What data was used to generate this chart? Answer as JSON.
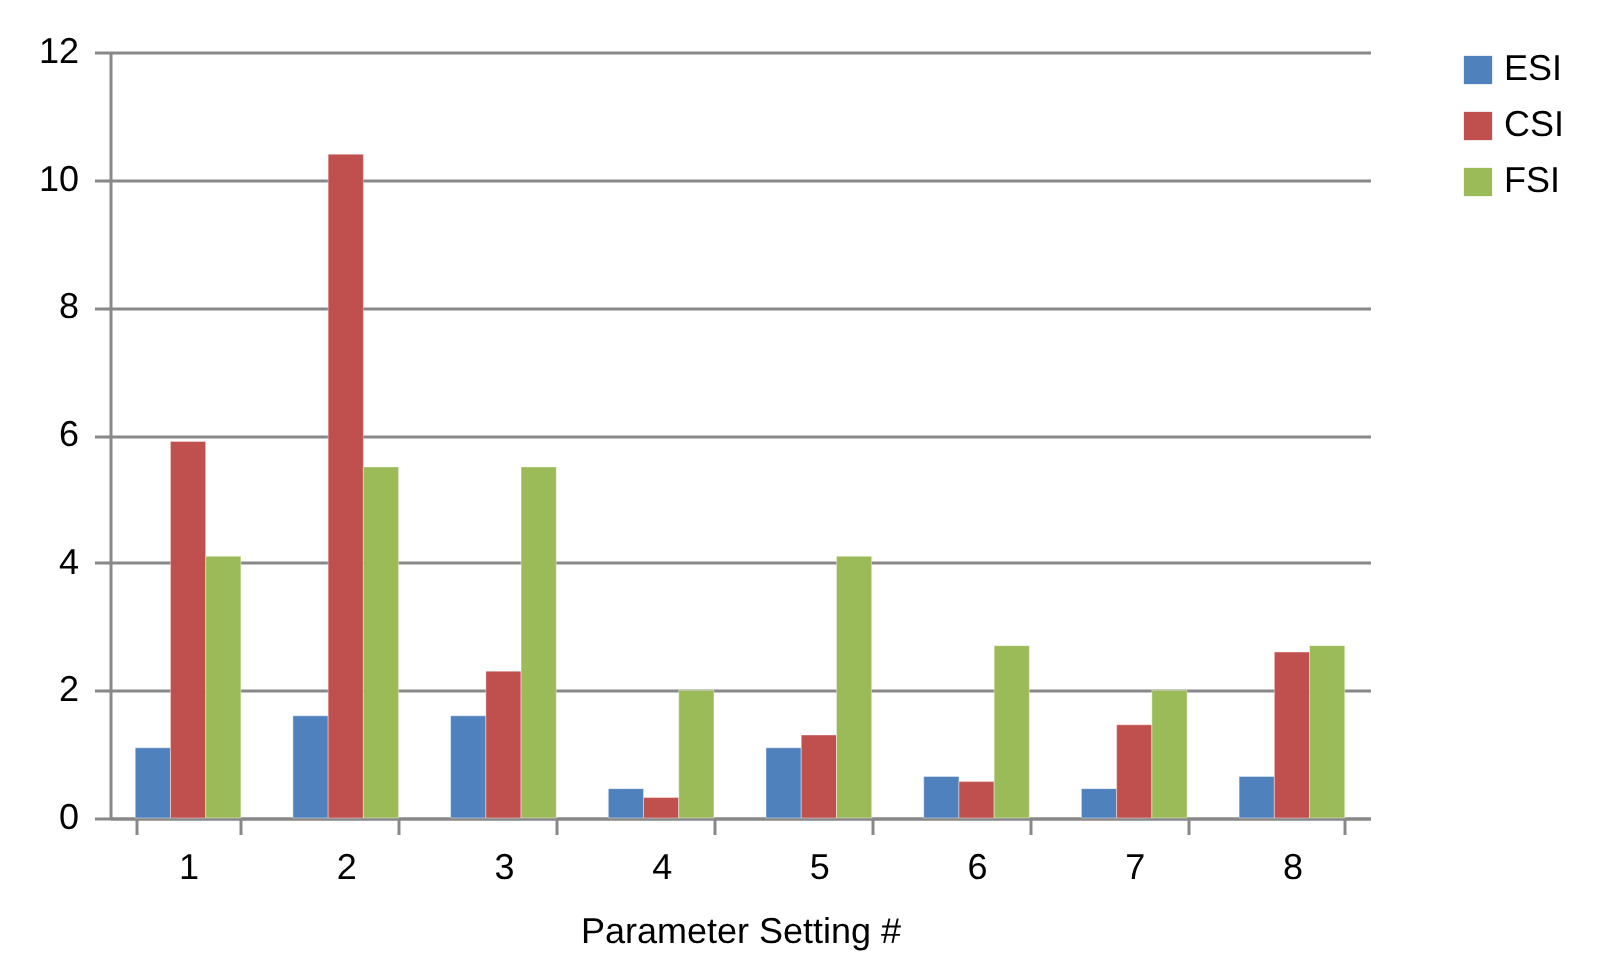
{
  "chart_data": {
    "type": "bar",
    "xlabel": "Parameter Setting #",
    "categories": [
      "1",
      "2",
      "3",
      "4",
      "5",
      "6",
      "7",
      "8"
    ],
    "series": [
      {
        "name": "ESI",
        "color": "#4f81bd",
        "values": [
          1.1,
          1.6,
          1.6,
          0.46,
          1.1,
          0.65,
          0.46,
          0.65
        ]
      },
      {
        "name": "CSI",
        "color": "#c0504d",
        "values": [
          5.9,
          10.4,
          2.3,
          0.32,
          1.3,
          0.57,
          1.46,
          2.6
        ]
      },
      {
        "name": "FSI",
        "color": "#9bbb59",
        "values": [
          4.1,
          5.5,
          5.5,
          2.0,
          4.1,
          2.7,
          2.0,
          2.7
        ]
      }
    ],
    "ylim": [
      0,
      12
    ],
    "yticks": [
      0,
      2,
      4,
      6,
      8,
      10,
      12
    ],
    "grid": "y",
    "legend": "right"
  }
}
